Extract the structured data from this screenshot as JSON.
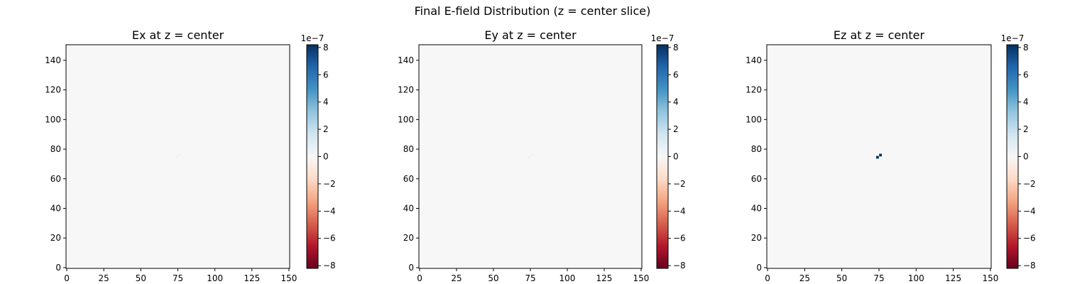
{
  "figure": {
    "suptitle": "Final E-field Distribution (z = center slice)"
  },
  "chart_data": [
    {
      "type": "heatmap",
      "title": "Ex at z = center",
      "xlabel": "",
      "ylabel": "",
      "xlim": [
        0,
        150
      ],
      "ylim": [
        0,
        150
      ],
      "xticks": [
        0,
        25,
        50,
        75,
        100,
        125,
        150
      ],
      "yticks": [
        0,
        20,
        40,
        60,
        80,
        100,
        120,
        140
      ],
      "grid": false,
      "colormap": "RdBu",
      "background_value": 0,
      "colorbar": {
        "range": [
          -8.2e-07,
          8.2e-07
        ],
        "ticks": [
          -8,
          -6,
          -4,
          -2,
          0,
          2,
          4,
          6,
          8
        ],
        "offset_label": "1e−7"
      },
      "points": [
        {
          "x": 74,
          "y": 74.5,
          "value": 3e-08
        },
        {
          "x": 76,
          "y": 76,
          "value": 3e-08
        }
      ]
    },
    {
      "type": "heatmap",
      "title": "Ey at z = center",
      "xlabel": "",
      "ylabel": "",
      "xlim": [
        0,
        150
      ],
      "ylim": [
        0,
        150
      ],
      "xticks": [
        0,
        25,
        50,
        75,
        100,
        125,
        150
      ],
      "yticks": [
        0,
        20,
        40,
        60,
        80,
        100,
        120,
        140
      ],
      "grid": false,
      "colormap": "RdBu",
      "background_value": 0,
      "colorbar": {
        "range": [
          -8.2e-07,
          8.2e-07
        ],
        "ticks": [
          -8,
          -6,
          -4,
          -2,
          0,
          2,
          4,
          6,
          8
        ],
        "offset_label": "1e−7"
      },
      "points": [
        {
          "x": 74,
          "y": 74.5,
          "value": 3e-08
        },
        {
          "x": 76,
          "y": 76,
          "value": 3e-08
        }
      ]
    },
    {
      "type": "heatmap",
      "title": "Ez at z = center",
      "xlabel": "",
      "ylabel": "",
      "xlim": [
        0,
        150
      ],
      "ylim": [
        0,
        150
      ],
      "xticks": [
        0,
        25,
        50,
        75,
        100,
        125,
        150
      ],
      "yticks": [
        0,
        20,
        40,
        60,
        80,
        100,
        120,
        140
      ],
      "grid": false,
      "colormap": "RdBu",
      "background_value": 0,
      "colorbar": {
        "range": [
          -8.2e-07,
          8.2e-07
        ],
        "ticks": [
          -8,
          -6,
          -4,
          -2,
          0,
          2,
          4,
          6,
          8
        ],
        "offset_label": "1e−7"
      },
      "points": [
        {
          "x": 74,
          "y": 74.5,
          "value": 8.2e-07
        },
        {
          "x": 76,
          "y": 76,
          "value": 8.2e-07
        }
      ]
    }
  ]
}
